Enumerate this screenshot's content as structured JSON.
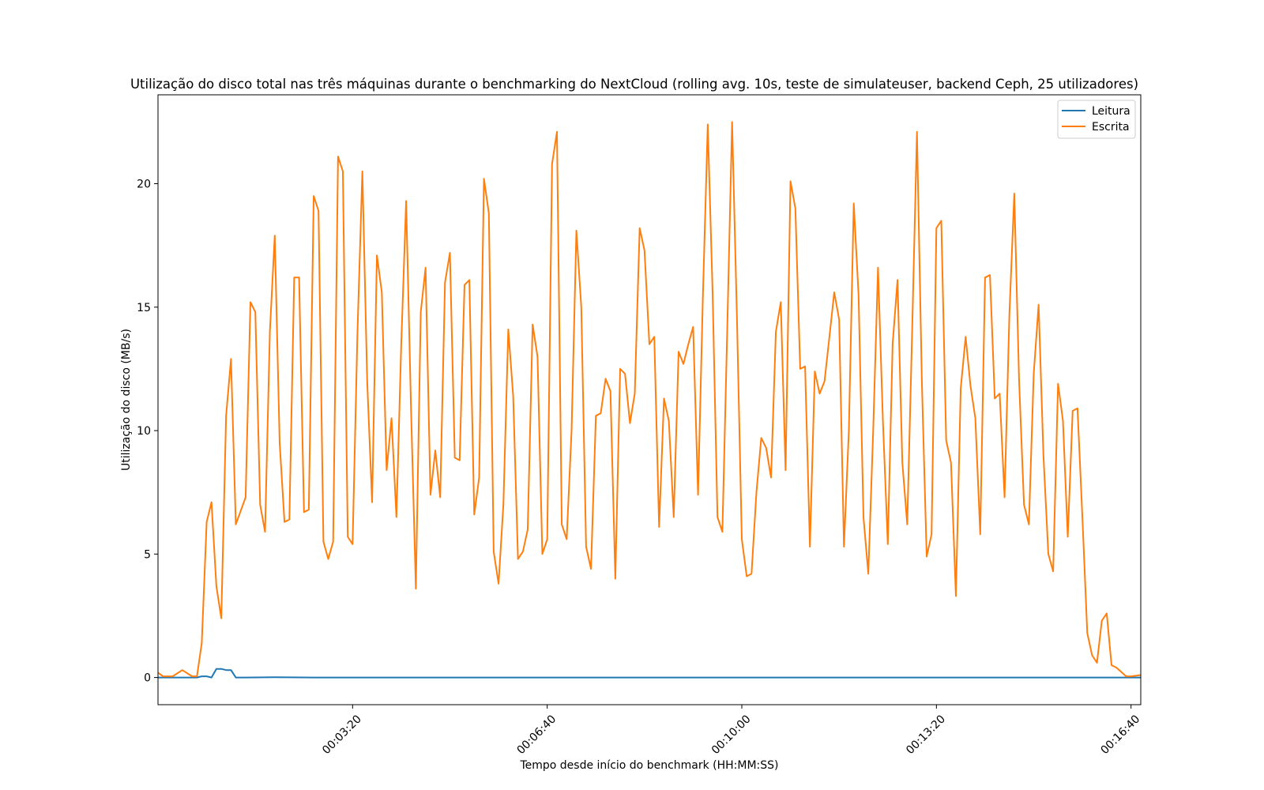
{
  "chart_data": {
    "type": "line",
    "title": "Utilização do disco total nas três máquinas durante o benchmarking do NextCloud (rolling avg. 10s, teste de simulateuser, backend Ceph, 25 utilizadores)",
    "xlabel": "Tempo desde início do benchmark (HH:MM:SS)",
    "ylabel": "Utilização do disco (MB/s)",
    "x_unit": "seconds since start",
    "xlim": [
      0,
      1010
    ],
    "ylim": [
      -1.1,
      23.6
    ],
    "x_ticks": [
      {
        "value": 200,
        "label": "00:03:20"
      },
      {
        "value": 400,
        "label": "00:06:40"
      },
      {
        "value": 600,
        "label": "00:10:00"
      },
      {
        "value": 800,
        "label": "00:13:20"
      },
      {
        "value": 1000,
        "label": "00:16:40"
      }
    ],
    "y_ticks": [
      {
        "value": 0,
        "label": "0"
      },
      {
        "value": 5,
        "label": "5"
      },
      {
        "value": 10,
        "label": "10"
      },
      {
        "value": 15,
        "label": "15"
      },
      {
        "value": 20,
        "label": "20"
      }
    ],
    "grid": false,
    "legend_position": "top-right",
    "series": [
      {
        "name": "Leitura",
        "color": "#1f77b4",
        "points": [
          [
            0,
            0
          ],
          [
            10,
            0
          ],
          [
            20,
            0
          ],
          [
            30,
            0
          ],
          [
            40,
            0
          ],
          [
            45,
            0.05
          ],
          [
            50,
            0.05
          ],
          [
            55,
            0
          ],
          [
            60,
            0.35
          ],
          [
            65,
            0.35
          ],
          [
            70,
            0.3
          ],
          [
            75,
            0.3
          ],
          [
            80,
            0
          ],
          [
            90,
            0
          ],
          [
            120,
            0.01
          ],
          [
            160,
            0
          ],
          [
            200,
            0
          ],
          [
            300,
            0
          ],
          [
            400,
            0
          ],
          [
            500,
            0
          ],
          [
            600,
            0
          ],
          [
            700,
            0
          ],
          [
            800,
            0
          ],
          [
            900,
            0
          ],
          [
            1000,
            0
          ],
          [
            1010,
            0
          ]
        ]
      },
      {
        "name": "Escrita",
        "color": "#ff7f0e",
        "points": [
          [
            0,
            0.2
          ],
          [
            5,
            0.05
          ],
          [
            15,
            0.05
          ],
          [
            25,
            0.3
          ],
          [
            35,
            0.05
          ],
          [
            40,
            0.05
          ],
          [
            45,
            1.4
          ],
          [
            50,
            6.3
          ],
          [
            55,
            7.1
          ],
          [
            60,
            3.7
          ],
          [
            65,
            2.4
          ],
          [
            70,
            10.6
          ],
          [
            75,
            12.9
          ],
          [
            80,
            6.2
          ],
          [
            90,
            7.3
          ],
          [
            95,
            15.2
          ],
          [
            100,
            14.8
          ],
          [
            105,
            7.0
          ],
          [
            110,
            5.9
          ],
          [
            115,
            14.0
          ],
          [
            120,
            17.9
          ],
          [
            125,
            9.5
          ],
          [
            130,
            6.3
          ],
          [
            135,
            6.4
          ],
          [
            140,
            16.2
          ],
          [
            145,
            16.2
          ],
          [
            150,
            6.7
          ],
          [
            155,
            6.8
          ],
          [
            160,
            19.5
          ],
          [
            165,
            18.9
          ],
          [
            170,
            5.5
          ],
          [
            175,
            4.8
          ],
          [
            180,
            5.5
          ],
          [
            185,
            21.1
          ],
          [
            190,
            20.5
          ],
          [
            195,
            5.7
          ],
          [
            200,
            5.4
          ],
          [
            205,
            14.0
          ],
          [
            210,
            20.5
          ],
          [
            215,
            12.0
          ],
          [
            220,
            7.1
          ],
          [
            225,
            17.1
          ],
          [
            230,
            15.6
          ],
          [
            235,
            8.4
          ],
          [
            240,
            10.5
          ],
          [
            245,
            6.5
          ],
          [
            250,
            13.5
          ],
          [
            255,
            19.3
          ],
          [
            260,
            11.0
          ],
          [
            265,
            3.6
          ],
          [
            270,
            14.8
          ],
          [
            275,
            16.6
          ],
          [
            280,
            7.4
          ],
          [
            285,
            9.2
          ],
          [
            290,
            7.3
          ],
          [
            295,
            16.0
          ],
          [
            300,
            17.2
          ],
          [
            305,
            8.9
          ],
          [
            310,
            8.8
          ],
          [
            315,
            15.9
          ],
          [
            320,
            16.1
          ],
          [
            325,
            6.6
          ],
          [
            330,
            8.1
          ],
          [
            335,
            20.2
          ],
          [
            340,
            18.8
          ],
          [
            345,
            5.1
          ],
          [
            350,
            3.8
          ],
          [
            355,
            7.0
          ],
          [
            360,
            14.1
          ],
          [
            365,
            11.4
          ],
          [
            370,
            4.8
          ],
          [
            375,
            5.1
          ],
          [
            380,
            6.0
          ],
          [
            385,
            14.3
          ],
          [
            390,
            13.0
          ],
          [
            395,
            5.0
          ],
          [
            400,
            5.6
          ],
          [
            405,
            20.8
          ],
          [
            410,
            22.1
          ],
          [
            415,
            6.2
          ],
          [
            420,
            5.6
          ],
          [
            425,
            10.0
          ],
          [
            430,
            18.1
          ],
          [
            435,
            15.0
          ],
          [
            440,
            5.3
          ],
          [
            445,
            4.4
          ],
          [
            450,
            10.6
          ],
          [
            455,
            10.7
          ],
          [
            460,
            12.1
          ],
          [
            465,
            11.6
          ],
          [
            470,
            4.0
          ],
          [
            475,
            12.5
          ],
          [
            480,
            12.3
          ],
          [
            485,
            10.3
          ],
          [
            490,
            11.5
          ],
          [
            495,
            18.2
          ],
          [
            500,
            17.3
          ],
          [
            505,
            13.5
          ],
          [
            510,
            13.8
          ],
          [
            515,
            6.1
          ],
          [
            520,
            11.3
          ],
          [
            525,
            10.4
          ],
          [
            530,
            6.5
          ],
          [
            535,
            13.2
          ],
          [
            540,
            12.7
          ],
          [
            545,
            13.5
          ],
          [
            550,
            14.2
          ],
          [
            555,
            7.4
          ],
          [
            560,
            15.4
          ],
          [
            565,
            22.4
          ],
          [
            570,
            15.5
          ],
          [
            575,
            6.5
          ],
          [
            580,
            5.9
          ],
          [
            585,
            14.0
          ],
          [
            590,
            22.5
          ],
          [
            595,
            14.5
          ],
          [
            600,
            5.6
          ],
          [
            605,
            4.1
          ],
          [
            610,
            4.2
          ],
          [
            615,
            7.5
          ],
          [
            620,
            9.7
          ],
          [
            625,
            9.3
          ],
          [
            630,
            8.1
          ],
          [
            635,
            14.0
          ],
          [
            640,
            15.2
          ],
          [
            645,
            8.4
          ],
          [
            650,
            20.1
          ],
          [
            655,
            19.0
          ],
          [
            660,
            12.5
          ],
          [
            665,
            12.6
          ],
          [
            670,
            5.3
          ],
          [
            675,
            12.4
          ],
          [
            680,
            11.5
          ],
          [
            685,
            12.0
          ],
          [
            690,
            13.8
          ],
          [
            695,
            15.6
          ],
          [
            700,
            14.5
          ],
          [
            705,
            5.3
          ],
          [
            710,
            10.0
          ],
          [
            715,
            19.2
          ],
          [
            720,
            15.5
          ],
          [
            725,
            6.5
          ],
          [
            730,
            4.2
          ],
          [
            735,
            10.0
          ],
          [
            740,
            16.6
          ],
          [
            745,
            10.4
          ],
          [
            750,
            5.4
          ],
          [
            755,
            13.5
          ],
          [
            760,
            16.1
          ],
          [
            765,
            8.7
          ],
          [
            770,
            6.2
          ],
          [
            775,
            14.0
          ],
          [
            780,
            22.1
          ],
          [
            785,
            12.0
          ],
          [
            790,
            4.9
          ],
          [
            795,
            5.8
          ],
          [
            800,
            18.2
          ],
          [
            805,
            18.5
          ],
          [
            810,
            9.6
          ],
          [
            815,
            8.7
          ],
          [
            820,
            3.3
          ],
          [
            825,
            11.7
          ],
          [
            830,
            13.8
          ],
          [
            835,
            11.8
          ],
          [
            840,
            10.5
          ],
          [
            845,
            5.8
          ],
          [
            850,
            16.2
          ],
          [
            855,
            16.3
          ],
          [
            860,
            11.3
          ],
          [
            865,
            11.5
          ],
          [
            870,
            7.3
          ],
          [
            875,
            14.7
          ],
          [
            880,
            19.6
          ],
          [
            885,
            12.0
          ],
          [
            890,
            7.0
          ],
          [
            895,
            6.2
          ],
          [
            900,
            12.3
          ],
          [
            905,
            15.1
          ],
          [
            910,
            9.0
          ],
          [
            915,
            5.0
          ],
          [
            920,
            4.3
          ],
          [
            925,
            11.9
          ],
          [
            930,
            10.4
          ],
          [
            935,
            5.7
          ],
          [
            940,
            10.8
          ],
          [
            945,
            10.9
          ],
          [
            950,
            6.5
          ],
          [
            955,
            1.8
          ],
          [
            960,
            0.9
          ],
          [
            965,
            0.6
          ],
          [
            970,
            2.3
          ],
          [
            975,
            2.6
          ],
          [
            980,
            0.5
          ],
          [
            985,
            0.4
          ],
          [
            995,
            0.05
          ],
          [
            1000,
            0.05
          ],
          [
            1010,
            0.1
          ]
        ]
      }
    ]
  }
}
